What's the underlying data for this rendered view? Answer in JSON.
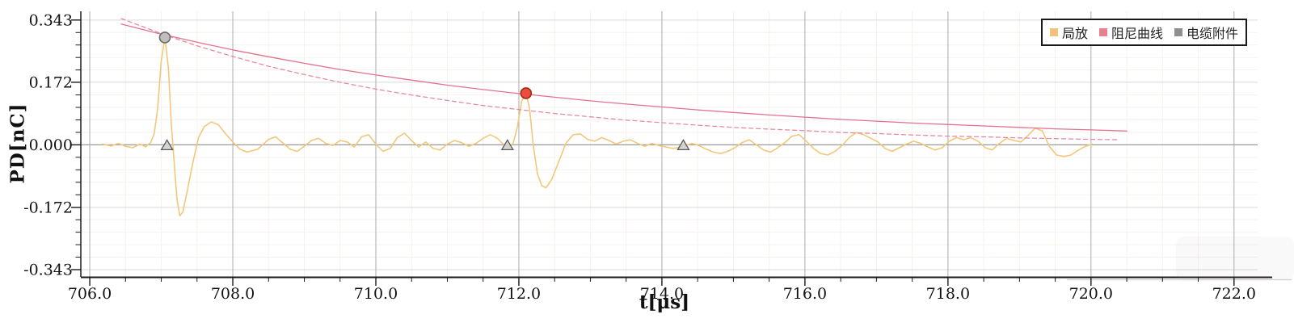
{
  "chart_data": {
    "type": "line",
    "title": "",
    "xlabel": "t[μs]",
    "ylabel": "PD[nC]",
    "xlim": [
      705.875,
      722.33
    ],
    "ylim": [
      -0.363,
      0.367
    ],
    "x_ticks": [
      706.0,
      708.0,
      710.0,
      712.0,
      714.0,
      716.0,
      718.0,
      720.0,
      722.0
    ],
    "x_tick_labels": [
      "706.0",
      "708.0",
      "710.0",
      "712.0",
      "714.0",
      "716.0",
      "718.0",
      "720.0",
      "722.0"
    ],
    "x_minor_step": 0.5,
    "y_ticks": [
      0.343,
      0.172,
      0.0,
      -0.172,
      -0.343
    ],
    "y_tick_labels": [
      "0.343",
      "0.172",
      "0.000",
      "-0.172",
      "-0.343"
    ],
    "y_minor_step": 0.0343,
    "grid": "on",
    "legend": {
      "position": "top-right",
      "entries": [
        {
          "label": "局放",
          "color": "#f2c27e"
        },
        {
          "label": "阻尼曲线",
          "color": "#e8808f"
        },
        {
          "label": "电缆附件",
          "color": "#8f8f8f"
        }
      ]
    },
    "series": [
      {
        "id": "pd-signal",
        "name": "局放",
        "style": "solid",
        "color": "#f2c77b",
        "width": 1.6,
        "points": [
          [
            706.18,
            0.002
          ],
          [
            706.3,
            -0.003
          ],
          [
            706.4,
            0.004
          ],
          [
            706.5,
            -0.004
          ],
          [
            706.6,
            -0.008
          ],
          [
            706.7,
            0.002
          ],
          [
            706.78,
            -0.005
          ],
          [
            706.85,
            0.006
          ],
          [
            706.9,
            0.03
          ],
          [
            706.95,
            0.1
          ],
          [
            707.0,
            0.23
          ],
          [
            707.05,
            0.295
          ],
          [
            707.1,
            0.21
          ],
          [
            707.14,
            0.06
          ],
          [
            707.18,
            -0.05
          ],
          [
            707.22,
            -0.15
          ],
          [
            707.26,
            -0.195
          ],
          [
            707.3,
            -0.185
          ],
          [
            707.36,
            -0.13
          ],
          [
            707.44,
            -0.05
          ],
          [
            707.52,
            0.02
          ],
          [
            707.6,
            0.05
          ],
          [
            707.7,
            0.063
          ],
          [
            707.8,
            0.055
          ],
          [
            707.9,
            0.03
          ],
          [
            708.0,
            0.008
          ],
          [
            708.1,
            -0.012
          ],
          [
            708.2,
            -0.02
          ],
          [
            708.35,
            -0.012
          ],
          [
            708.5,
            0.015
          ],
          [
            708.6,
            0.022
          ],
          [
            708.7,
            0.005
          ],
          [
            708.8,
            -0.012
          ],
          [
            708.9,
            -0.018
          ],
          [
            709.0,
            -0.004
          ],
          [
            709.1,
            0.012
          ],
          [
            709.2,
            0.018
          ],
          [
            709.3,
            0.004
          ],
          [
            709.4,
            -0.002
          ],
          [
            709.5,
            0.012
          ],
          [
            709.6,
            0.008
          ],
          [
            709.7,
            -0.006
          ],
          [
            709.8,
            0.022
          ],
          [
            709.9,
            0.028
          ],
          [
            710.0,
            0.002
          ],
          [
            710.1,
            -0.018
          ],
          [
            710.2,
            -0.01
          ],
          [
            710.3,
            0.02
          ],
          [
            710.4,
            0.032
          ],
          [
            710.5,
            0.012
          ],
          [
            710.6,
            -0.006
          ],
          [
            710.7,
            0.008
          ],
          [
            710.8,
            -0.01
          ],
          [
            710.9,
            -0.014
          ],
          [
            711.0,
            0.002
          ],
          [
            711.1,
            0.012
          ],
          [
            711.2,
            0.006
          ],
          [
            711.3,
            -0.004
          ],
          [
            711.4,
            0.004
          ],
          [
            711.5,
            0.018
          ],
          [
            711.6,
            0.028
          ],
          [
            711.7,
            0.018
          ],
          [
            711.78,
            0.002
          ],
          [
            711.85,
            -0.008
          ],
          [
            711.92,
            0.004
          ],
          [
            711.98,
            0.05
          ],
          [
            712.04,
            0.12
          ],
          [
            712.1,
            0.142
          ],
          [
            712.15,
            0.1
          ],
          [
            712.2,
            0.0
          ],
          [
            712.26,
            -0.08
          ],
          [
            712.32,
            -0.112
          ],
          [
            712.38,
            -0.118
          ],
          [
            712.46,
            -0.095
          ],
          [
            712.56,
            -0.045
          ],
          [
            712.66,
            0.005
          ],
          [
            712.76,
            0.028
          ],
          [
            712.86,
            0.03
          ],
          [
            712.96,
            0.015
          ],
          [
            713.06,
            0.01
          ],
          [
            713.16,
            0.02
          ],
          [
            713.26,
            0.012
          ],
          [
            713.36,
            0.002
          ],
          [
            713.46,
            0.01
          ],
          [
            713.56,
            0.014
          ],
          [
            713.66,
            0.004
          ],
          [
            713.76,
            -0.004
          ],
          [
            713.86,
            0.004
          ],
          [
            713.96,
            -0.002
          ],
          [
            714.06,
            -0.006
          ],
          [
            714.16,
            -0.01
          ],
          [
            714.3,
            -0.004
          ],
          [
            714.42,
            0.004
          ],
          [
            714.52,
            -0.002
          ],
          [
            714.62,
            -0.012
          ],
          [
            714.72,
            -0.02
          ],
          [
            714.82,
            -0.024
          ],
          [
            714.92,
            -0.018
          ],
          [
            715.02,
            -0.008
          ],
          [
            715.12,
            0.006
          ],
          [
            715.22,
            0.014
          ],
          [
            715.32,
            0.0
          ],
          [
            715.42,
            -0.014
          ],
          [
            715.52,
            -0.02
          ],
          [
            715.62,
            -0.008
          ],
          [
            715.72,
            0.006
          ],
          [
            715.82,
            0.024
          ],
          [
            715.92,
            0.028
          ],
          [
            716.02,
            0.01
          ],
          [
            716.12,
            -0.01
          ],
          [
            716.22,
            -0.024
          ],
          [
            716.32,
            -0.028
          ],
          [
            716.42,
            -0.018
          ],
          [
            716.52,
            -0.002
          ],
          [
            716.62,
            0.02
          ],
          [
            716.72,
            0.034
          ],
          [
            716.82,
            0.028
          ],
          [
            716.92,
            0.018
          ],
          [
            717.02,
            0.008
          ],
          [
            717.12,
            -0.01
          ],
          [
            717.22,
            -0.018
          ],
          [
            717.32,
            -0.008
          ],
          [
            717.42,
            0.002
          ],
          [
            717.52,
            0.01
          ],
          [
            717.62,
            0.004
          ],
          [
            717.72,
            -0.006
          ],
          [
            717.82,
            -0.014
          ],
          [
            717.92,
            -0.008
          ],
          [
            718.02,
            0.01
          ],
          [
            718.12,
            0.02
          ],
          [
            718.22,
            0.014
          ],
          [
            718.32,
            0.02
          ],
          [
            718.42,
            0.01
          ],
          [
            718.52,
            -0.008
          ],
          [
            718.62,
            -0.014
          ],
          [
            718.72,
            0.004
          ],
          [
            718.82,
            0.018
          ],
          [
            718.92,
            0.012
          ],
          [
            719.02,
            0.008
          ],
          [
            719.12,
            0.026
          ],
          [
            719.22,
            0.046
          ],
          [
            719.32,
            0.038
          ],
          [
            719.42,
            -0.005
          ],
          [
            719.52,
            -0.028
          ],
          [
            719.62,
            -0.032
          ],
          [
            719.72,
            -0.028
          ],
          [
            719.82,
            -0.015
          ],
          [
            719.92,
            -0.004
          ],
          [
            720.02,
            0.002
          ]
        ]
      },
      {
        "id": "damping-solid",
        "name": "阻尼曲线",
        "style": "solid",
        "color": "#e4718d",
        "width": 1.3,
        "points": [
          [
            706.44,
            0.332
          ],
          [
            707.0,
            0.304
          ],
          [
            707.05,
            0.302
          ],
          [
            707.5,
            0.282
          ],
          [
            708.0,
            0.261
          ],
          [
            708.5,
            0.242
          ],
          [
            709.0,
            0.224
          ],
          [
            709.5,
            0.207
          ],
          [
            710.0,
            0.192
          ],
          [
            710.5,
            0.178
          ],
          [
            711.0,
            0.164
          ],
          [
            711.5,
            0.152
          ],
          [
            712.0,
            0.141
          ],
          [
            712.5,
            0.131
          ],
          [
            713.0,
            0.121
          ],
          [
            713.5,
            0.112
          ],
          [
            714.0,
            0.104
          ],
          [
            714.5,
            0.096
          ],
          [
            715.0,
            0.089
          ],
          [
            715.5,
            0.082
          ],
          [
            716.0,
            0.076
          ],
          [
            716.5,
            0.07
          ],
          [
            717.0,
            0.065
          ],
          [
            717.5,
            0.06
          ],
          [
            718.0,
            0.056
          ],
          [
            718.5,
            0.052
          ],
          [
            719.0,
            0.048
          ],
          [
            719.5,
            0.044
          ],
          [
            720.0,
            0.041
          ],
          [
            720.5,
            0.038
          ]
        ]
      },
      {
        "id": "damping-dashed",
        "name": "阻尼曲线",
        "style": "dashed",
        "color": "#e78ba4",
        "width": 1.3,
        "dash": "5 4",
        "points": [
          [
            706.44,
            0.347
          ],
          [
            707.05,
            0.302
          ],
          [
            707.5,
            0.272
          ],
          [
            708.0,
            0.243
          ],
          [
            708.5,
            0.216
          ],
          [
            709.0,
            0.193
          ],
          [
            709.5,
            0.172
          ],
          [
            710.0,
            0.153
          ],
          [
            710.5,
            0.137
          ],
          [
            711.0,
            0.122
          ],
          [
            711.5,
            0.108
          ],
          [
            712.0,
            0.097
          ],
          [
            712.5,
            0.086
          ],
          [
            713.0,
            0.077
          ],
          [
            713.5,
            0.068
          ],
          [
            714.0,
            0.061
          ],
          [
            714.5,
            0.054
          ],
          [
            715.0,
            0.048
          ],
          [
            715.5,
            0.043
          ],
          [
            716.0,
            0.039
          ],
          [
            716.5,
            0.034
          ],
          [
            717.0,
            0.031
          ],
          [
            717.5,
            0.027
          ],
          [
            718.0,
            0.024
          ],
          [
            718.5,
            0.022
          ],
          [
            719.0,
            0.019
          ],
          [
            719.5,
            0.017
          ],
          [
            720.0,
            0.015
          ],
          [
            720.4,
            0.014
          ]
        ]
      }
    ],
    "markers": [
      {
        "id": "cable-accessory-peak-marker",
        "name": "电缆附件",
        "shape": "circle",
        "t": 707.05,
        "pd": 0.295,
        "fill": "#c0bfbd",
        "stroke": "#6b6b6b"
      },
      {
        "id": "pd-event-peak-marker",
        "name": "局放",
        "shape": "circle",
        "t": 712.1,
        "pd": 0.142,
        "fill": "#e9503c",
        "stroke": "#a32616"
      },
      {
        "id": "cable-accessory-marker-1",
        "name": "电缆附件",
        "shape": "triangle",
        "t": 707.08,
        "pd": 0.0,
        "fill": "#d2d2d2",
        "stroke": "#5a5a5a"
      },
      {
        "id": "cable-accessory-marker-2",
        "name": "电缆附件",
        "shape": "triangle",
        "t": 711.84,
        "pd": 0.0,
        "fill": "#d2d2d2",
        "stroke": "#5a5a5a"
      },
      {
        "id": "cable-accessory-marker-3",
        "name": "电缆附件",
        "shape": "triangle",
        "t": 714.3,
        "pd": 0.0,
        "fill": "#d2d2d2",
        "stroke": "#5a5a5a"
      }
    ],
    "colors": {
      "background": "#ffffff",
      "axis": "#1a1a1a",
      "grid_major_h": "#d9d9d9",
      "grid_major_v": "#ababab",
      "grid_minor": "#f6f1ee",
      "zero_line": "#9a9a9a",
      "tick_text": "#111111"
    }
  }
}
